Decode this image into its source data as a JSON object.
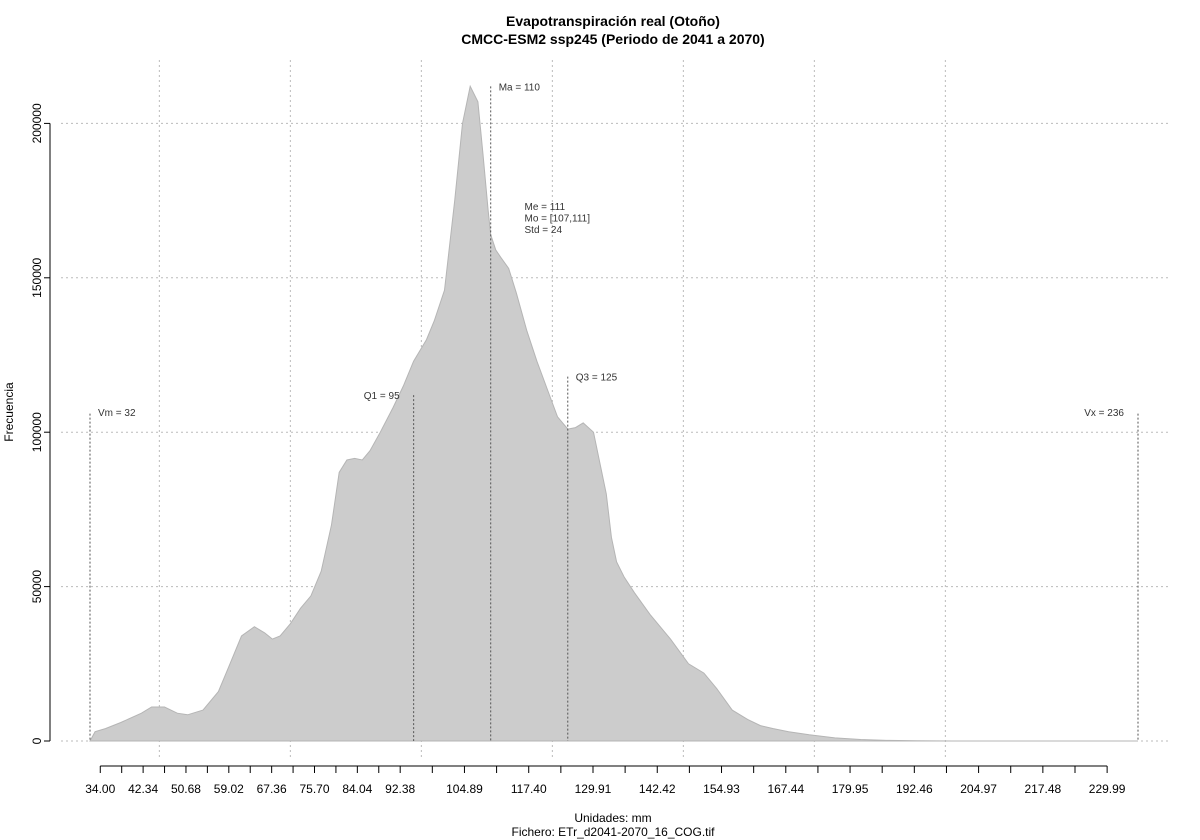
{
  "chart_data": {
    "type": "area",
    "title": "Evapotranspiración real (Otoño)",
    "subtitle": "CMCC-ESM2 ssp245 (Periodo de 2041 a 2070)",
    "xlabel": "Unidades: mm",
    "file_label": "Fichero: ETr_d2041-2070_16_COG.tif",
    "ylabel": "Frecuencia",
    "xlim": [
      32,
      236
    ],
    "ylim": [
      0,
      215000
    ],
    "grid": true,
    "fill_color": "#cccccc",
    "x_ticks": [
      34.0,
      42.34,
      50.68,
      59.02,
      67.36,
      75.7,
      84.04,
      92.38,
      104.89,
      117.4,
      129.91,
      142.42,
      154.93,
      167.44,
      179.95,
      192.46,
      204.97,
      217.48,
      229.99
    ],
    "x_tick_labels": [
      "34.00",
      "42.34",
      "50.68",
      "59.02",
      "67.36",
      "75.70",
      "84.04",
      "92.38",
      "104.89",
      "117.40",
      "129.91",
      "142.42",
      "154.93",
      "167.44",
      "179.95",
      "192.46",
      "204.97",
      "217.48",
      "229.99"
    ],
    "y_ticks": [
      0,
      50000,
      100000,
      150000,
      200000
    ],
    "y_tick_labels": [
      "0",
      "50000",
      "100000",
      "150000",
      "200000"
    ],
    "x_grid": [
      45.5,
      71.0,
      96.5,
      122.0,
      147.5,
      173.0,
      198.5
    ],
    "series": [
      {
        "values_x": [
          32.0,
          33.0,
          35.0,
          38.0,
          42.0,
          44.0,
          46.5,
          49.0,
          51.0,
          54.0,
          57.0,
          59.0,
          61.5,
          64.0,
          66.0,
          67.5,
          69.0,
          71.0,
          73.0,
          75.0,
          77.0,
          79.0,
          80.5,
          82.0,
          83.5,
          85.0,
          86.5,
          88.5,
          91.0,
          93.0,
          95.0,
          97.5,
          99.0,
          101.0,
          103.0,
          104.5,
          106.0,
          107.5,
          108.5,
          109.5,
          110.0,
          111.0,
          112.0,
          113.5,
          115.0,
          117.0,
          119.0,
          121.0,
          123.0,
          125.0,
          126.5,
          128.0,
          130.0,
          131.0,
          132.5,
          133.5,
          134.5,
          136.0,
          138.0,
          141.0,
          145.0,
          148.5,
          151.5,
          154.0,
          157.0,
          160.0,
          162.5,
          165.0,
          168.0,
          172.0,
          177.0,
          182.0,
          187.0,
          193.0,
          200.0,
          210.0,
          220.0,
          230.0,
          236.0
        ],
        "values_y": [
          0,
          3000,
          4000,
          6000,
          9000,
          11000,
          11000,
          9000,
          8500,
          10000,
          16000,
          24000,
          34000,
          37000,
          35000,
          33000,
          34000,
          38000,
          43000,
          47000,
          55000,
          70000,
          87000,
          91000,
          91500,
          91000,
          94000,
          100000,
          108000,
          115000,
          123000,
          130000,
          136000,
          146000,
          175000,
          200000,
          212000,
          207000,
          190000,
          172000,
          164000,
          159000,
          156500,
          153000,
          145000,
          133000,
          123000,
          114000,
          105000,
          101000,
          101500,
          103000,
          100000,
          92000,
          80000,
          66000,
          58000,
          53000,
          48000,
          41000,
          33000,
          25000,
          22000,
          17000,
          10000,
          7000,
          5000,
          4000,
          3000,
          2000,
          1000,
          500,
          200,
          100,
          0,
          0,
          0,
          0,
          0
        ]
      }
    ],
    "vlines": [
      {
        "x": 32,
        "label": "Vm = 32",
        "top": 106000,
        "label_y": 106500,
        "align": "start"
      },
      {
        "x": 95,
        "label": "Q1 = 95",
        "top": 112000,
        "label_y": 112000,
        "align": "end"
      },
      {
        "x": 110,
        "label": "Ma = 110",
        "top": 212000,
        "label_y": 212000,
        "align": "start"
      },
      {
        "x": 125,
        "label": "Q3 = 125",
        "top": 118000,
        "label_y": 118000,
        "align": "start"
      },
      {
        "x": 236,
        "label": "Vx = 236",
        "top": 106000,
        "label_y": 106500,
        "align": "end"
      }
    ],
    "stats": {
      "x": 116,
      "y": 173000,
      "lines": [
        "Me = 111",
        "Mo = [107,111]",
        "Std = 24"
      ]
    }
  }
}
